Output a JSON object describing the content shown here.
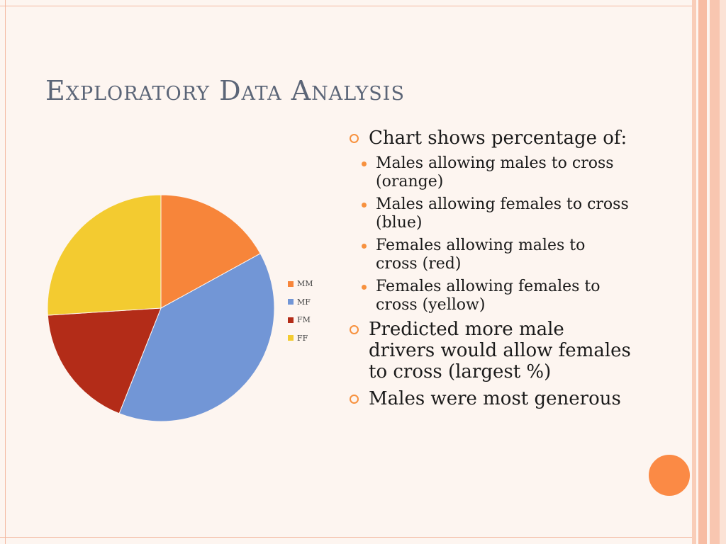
{
  "slide": {
    "title": "Exploratory Data Analysis"
  },
  "chart_data": {
    "type": "pie",
    "title": "",
    "categories": [
      "MM",
      "MF",
      "FM",
      "FF"
    ],
    "values": [
      17,
      39,
      18,
      26
    ],
    "colors": [
      "#f7853a",
      "#7296d6",
      "#b32c18",
      "#f3cb30"
    ],
    "legend_position": "right"
  },
  "bullets": [
    {
      "text": "Chart shows percentage of:",
      "sub": [
        "Males allowing males to cross (orange)",
        "Males allowing females to cross (blue)",
        "Females allowing males to cross (red)",
        "Females allowing females to cross (yellow)"
      ]
    },
    {
      "text": "Predicted more male drivers would allow females to cross (largest %)",
      "sub": []
    },
    {
      "text": "Males were most generous",
      "sub": []
    }
  ],
  "colors": {
    "accent": "#f7913e",
    "title": "#5b6577",
    "background": "#fdf5f0"
  }
}
